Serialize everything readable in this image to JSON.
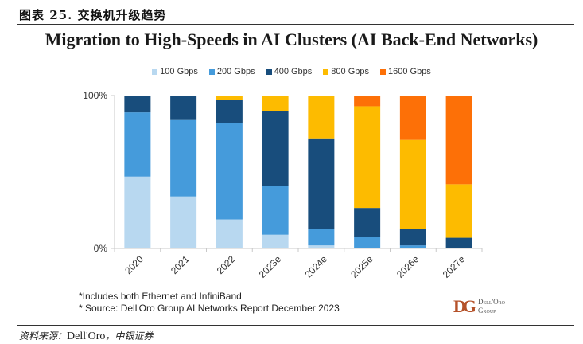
{
  "figure": {
    "caption": "图表 25. 交换机升级趋势",
    "source_prefix": "资料来源：",
    "source_main": "Dell'Oro",
    "source_suffix": "，中银证券"
  },
  "notes": [
    "*Includes both Ethernet and InfiniBand",
    "* Source: Dell'Oro Group AI Networks Report December 2023"
  ],
  "logo": {
    "mark": "DG",
    "line1": "Dell'Oro",
    "line2": "Group"
  },
  "chart_data": {
    "type": "bar",
    "stacked": true,
    "normalized": true,
    "title": "Migration to High-Speeds in AI Clusters (AI Back-End Networks)",
    "xlabel": "",
    "ylabel": "",
    "ylim": [
      0,
      100
    ],
    "yticks": [
      "0%",
      "100%"
    ],
    "grid": false,
    "legend_position": "top",
    "categories": [
      "2020",
      "2021",
      "2022",
      "2023e",
      "2024e",
      "2025e",
      "2026e",
      "2027e"
    ],
    "series": [
      {
        "name": "100 Gbps",
        "color": "#b8d8f0",
        "values": [
          47,
          34,
          19,
          9,
          2,
          0.5,
          0,
          0
        ]
      },
      {
        "name": "200 Gbps",
        "color": "#459bdb",
        "values": [
          42,
          50,
          63,
          32,
          11,
          7,
          2,
          0
        ]
      },
      {
        "name": "400 Gbps",
        "color": "#184d7c",
        "values": [
          11,
          16,
          15,
          49,
          59,
          19,
          11,
          7
        ]
      },
      {
        "name": "800 Gbps",
        "color": "#fdbb00",
        "values": [
          0,
          0,
          3,
          10,
          28,
          66.5,
          58,
          35
        ]
      },
      {
        "name": "1600 Gbps",
        "color": "#fd7007",
        "values": [
          0,
          0,
          0,
          0,
          0,
          7,
          29,
          58
        ]
      }
    ]
  }
}
